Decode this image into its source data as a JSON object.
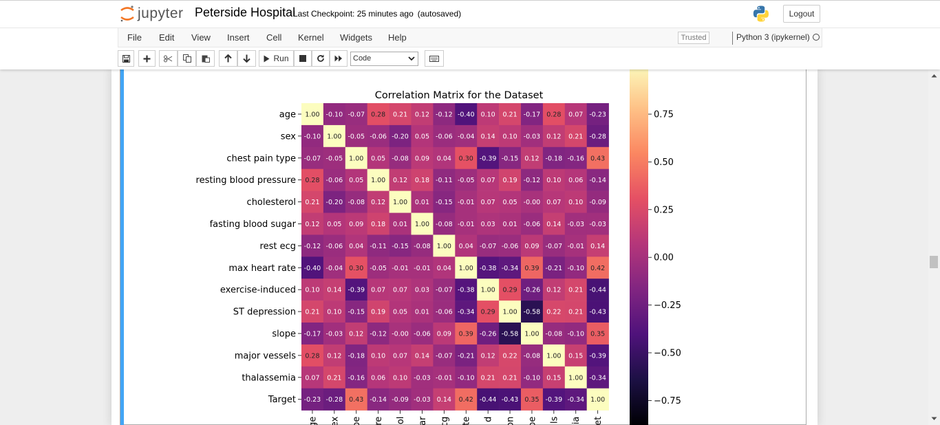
{
  "header": {
    "logo_text": "jupyter",
    "notebook_name": "Peterside Hospital",
    "checkpoint": "Last Checkpoint: 25 minutes ago",
    "autosave": "(autosaved)",
    "logout_label": "Logout"
  },
  "menu": {
    "items": [
      "File",
      "Edit",
      "View",
      "Insert",
      "Cell",
      "Kernel",
      "Widgets",
      "Help"
    ],
    "trusted_label": "Trusted",
    "kernel_name": "Python 3 (ipykernel)"
  },
  "toolbar": {
    "run_label": "Run",
    "cell_type": "Code",
    "icons": [
      "save-icon",
      "plus-icon",
      "cut-icon",
      "copy-icon",
      "paste-icon",
      "arrow-up-icon",
      "arrow-down-icon",
      "run-icon",
      "stop-icon",
      "restart-icon",
      "fast-forward-icon",
      "keyboard-icon"
    ]
  },
  "colors": {
    "cell_bar": "#42a5f5",
    "logo_orange": "#f37726"
  },
  "chart_data": {
    "type": "heatmap",
    "title": "Correlation Matrix for the Dataset",
    "colormap": "magma",
    "labels": [
      "age",
      "sex",
      "chest pain type",
      "resting blood pressure",
      "cholesterol",
      "fasting blood sugar",
      "rest ecg",
      "max heart rate",
      "exercise-induced",
      "ST depression",
      "slope",
      "major vessels",
      "thalassemia",
      "Target"
    ],
    "x_tick_fragments": [
      "ge",
      "ex",
      "pe",
      "re",
      "ol",
      "ar",
      "cg",
      "te",
      "d",
      "on",
      "pe",
      "ls",
      "ia",
      "et"
    ],
    "values": [
      [
        1.0,
        -0.1,
        -0.07,
        0.28,
        0.21,
        0.12,
        -0.12,
        -0.4,
        0.1,
        0.21,
        -0.17,
        0.28,
        0.07,
        -0.23
      ],
      [
        -0.1,
        1.0,
        -0.05,
        -0.06,
        -0.2,
        0.05,
        -0.06,
        -0.04,
        0.14,
        0.1,
        -0.03,
        0.12,
        0.21,
        -0.28
      ],
      [
        -0.07,
        -0.05,
        1.0,
        0.05,
        -0.08,
        0.09,
        0.04,
        0.3,
        -0.39,
        -0.15,
        0.12,
        -0.18,
        -0.16,
        0.43
      ],
      [
        0.28,
        -0.06,
        0.05,
        1.0,
        0.12,
        0.18,
        -0.11,
        -0.05,
        0.07,
        0.19,
        -0.12,
        0.1,
        0.06,
        -0.14
      ],
      [
        0.21,
        -0.2,
        -0.08,
        0.12,
        1.0,
        0.01,
        -0.15,
        -0.01,
        0.07,
        0.05,
        -0.0,
        0.07,
        0.1,
        -0.09
      ],
      [
        0.12,
        0.05,
        0.09,
        0.18,
        0.01,
        1.0,
        -0.08,
        -0.01,
        0.03,
        0.01,
        -0.06,
        0.14,
        -0.03,
        -0.03
      ],
      [
        -0.12,
        -0.06,
        0.04,
        -0.11,
        -0.15,
        -0.08,
        1.0,
        0.04,
        -0.07,
        -0.06,
        0.09,
        -0.07,
        -0.01,
        0.14
      ],
      [
        -0.4,
        -0.04,
        0.3,
        -0.05,
        -0.01,
        -0.01,
        0.04,
        1.0,
        -0.38,
        -0.34,
        0.39,
        -0.21,
        -0.1,
        0.42
      ],
      [
        0.1,
        0.14,
        -0.39,
        0.07,
        0.07,
        0.03,
        -0.07,
        -0.38,
        1.0,
        0.29,
        -0.26,
        0.12,
        0.21,
        -0.44
      ],
      [
        0.21,
        0.1,
        -0.15,
        0.19,
        0.05,
        0.01,
        -0.06,
        -0.34,
        0.29,
        1.0,
        -0.58,
        0.22,
        0.21,
        -0.43
      ],
      [
        -0.17,
        -0.03,
        0.12,
        -0.12,
        -0.0,
        -0.06,
        0.09,
        0.39,
        -0.26,
        -0.58,
        1.0,
        -0.08,
        -0.1,
        0.35
      ],
      [
        0.28,
        0.12,
        -0.18,
        0.1,
        0.07,
        0.14,
        -0.07,
        -0.21,
        0.12,
        0.22,
        -0.08,
        1.0,
        0.15,
        -0.39
      ],
      [
        0.07,
        0.21,
        -0.16,
        0.06,
        0.1,
        -0.03,
        -0.01,
        -0.1,
        0.21,
        0.21,
        -0.1,
        0.15,
        1.0,
        -0.34
      ],
      [
        -0.23,
        -0.28,
        0.43,
        -0.14,
        -0.09,
        -0.03,
        0.14,
        0.42,
        -0.44,
        -0.43,
        0.35,
        -0.39,
        -0.34,
        1.0
      ]
    ],
    "colorbar_ticks": [
      "0.75",
      "0.50",
      "0.25",
      "0.00",
      "−0.25",
      "−0.50",
      "−0.75"
    ],
    "colorbar_tick_values": [
      0.75,
      0.5,
      0.25,
      0.0,
      -0.25,
      -0.5,
      -0.75
    ],
    "vmin": -0.88,
    "vmax": 1.0
  }
}
